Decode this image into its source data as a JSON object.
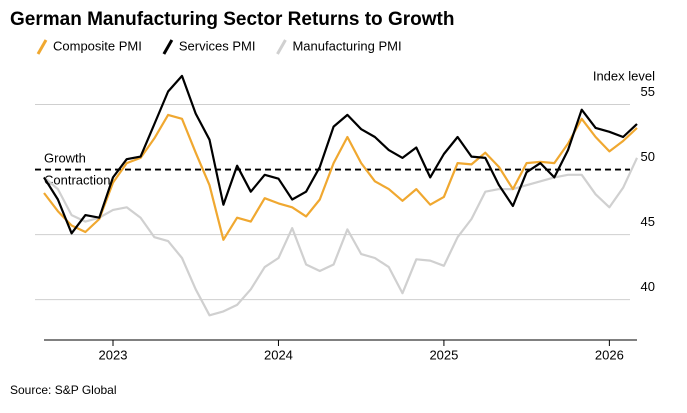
{
  "chart_data": {
    "type": "line",
    "title": "German Manufacturing Sector Returns to Growth",
    "y_axis_label": "Index level",
    "source": "Source: S&P Global",
    "annotations": {
      "above": "Growth",
      "below": "Contraction"
    },
    "threshold": 50,
    "x": [
      2022.583,
      2022.667,
      2022.75,
      2022.833,
      2022.917,
      2023.0,
      2023.083,
      2023.167,
      2023.25,
      2023.333,
      2023.417,
      2023.5,
      2023.583,
      2023.667,
      2023.75,
      2023.833,
      2023.917,
      2024.0,
      2024.083,
      2024.167,
      2024.25,
      2024.333,
      2024.417,
      2024.5,
      2024.583,
      2024.667,
      2024.75,
      2024.833,
      2024.917,
      2025.0,
      2025.083,
      2025.167,
      2025.25,
      2025.333,
      2025.417,
      2025.5,
      2025.583,
      2025.667,
      2025.75,
      2025.833,
      2025.917,
      2026.0,
      2026.083,
      2026.167
    ],
    "series": [
      {
        "name": "Composite PMI",
        "color": "#f0a830",
        "values": [
          48.2,
          46.8,
          45.7,
          45.2,
          46.2,
          49.0,
          50.5,
          50.9,
          52.4,
          54.2,
          53.9,
          51.3,
          48.8,
          44.6,
          46.3,
          46.0,
          47.8,
          47.4,
          47.1,
          46.4,
          47.7,
          50.5,
          52.5,
          50.5,
          49.1,
          48.5,
          47.6,
          48.5,
          47.3,
          47.9,
          50.5,
          50.4,
          51.3,
          50.2,
          48.5,
          50.5,
          50.6,
          50.5,
          52.0,
          53.9,
          52.5,
          51.4,
          52.2,
          53.2
        ]
      },
      {
        "name": "Services PMI",
        "color": "#000000",
        "values": [
          49.4,
          47.7,
          45.1,
          46.5,
          46.3,
          49.4,
          50.8,
          51.0,
          53.5,
          56.0,
          57.2,
          54.3,
          52.3,
          47.3,
          50.3,
          48.3,
          49.6,
          49.3,
          47.7,
          48.3,
          50.2,
          53.3,
          54.2,
          53.1,
          52.5,
          51.5,
          50.9,
          51.7,
          49.4,
          51.2,
          52.5,
          51.0,
          50.9,
          48.8,
          47.2,
          49.8,
          50.5,
          49.4,
          51.5,
          54.6,
          53.2,
          52.9,
          52.5,
          53.5
        ]
      },
      {
        "name": "Manufacturing PMI",
        "color": "#d0d0d0",
        "values": [
          49.4,
          48.5,
          46.5,
          46.0,
          46.3,
          46.9,
          47.1,
          46.3,
          44.8,
          44.5,
          43.2,
          40.8,
          38.8,
          39.1,
          39.6,
          40.8,
          42.5,
          43.2,
          45.5,
          42.7,
          42.2,
          42.7,
          45.4,
          43.5,
          43.2,
          42.5,
          40.5,
          43.1,
          43.0,
          42.6,
          44.8,
          46.2,
          48.3,
          48.5,
          48.5,
          48.8,
          49.1,
          49.4,
          49.6,
          49.6,
          48.1,
          47.1,
          48.6,
          50.9
        ]
      }
    ],
    "xlim": [
      2022.583,
      2026.167
    ],
    "xticks": [
      2023,
      2024,
      2025,
      2026
    ],
    "ylim": [
      36.9,
      57.5
    ],
    "yticks": [
      40,
      45,
      50,
      55
    ],
    "grid": true
  }
}
